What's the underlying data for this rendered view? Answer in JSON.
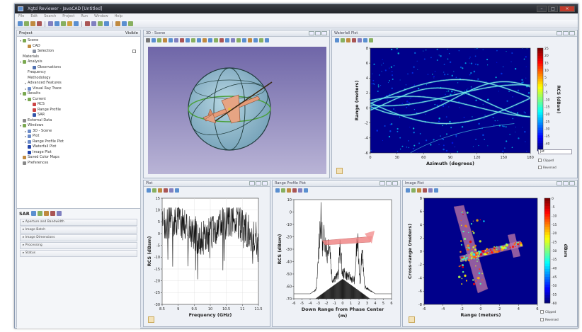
{
  "window": {
    "title": "Xgtd Reviewer - JavaCAD [Untitled]"
  },
  "menu": [
    "File",
    "Edit",
    "Search",
    "Project",
    "Run",
    "Window",
    "Help"
  ],
  "project": {
    "title": "Project",
    "visible_label": "Visible"
  },
  "tree": [
    {
      "label": "Scene",
      "indent": 0,
      "arrow": "▾",
      "color": "#7aa850"
    },
    {
      "label": "CAD",
      "indent": 1,
      "arrow": "",
      "color": "#c08a40"
    },
    {
      "label": "Selection",
      "indent": 2,
      "arrow": "",
      "color": "#8890a0"
    },
    {
      "label": "Materials",
      "indent": 0,
      "arrow": "",
      "color": ""
    },
    {
      "label": "Analysis",
      "indent": 0,
      "arrow": "▾",
      "color": "#7aa850"
    },
    {
      "label": "Observations",
      "indent": 2,
      "arrow": "",
      "color": "#5070b0"
    },
    {
      "label": "Frequency",
      "indent": 1,
      "arrow": "",
      "color": ""
    },
    {
      "label": "Methodology",
      "indent": 1,
      "arrow": "",
      "color": ""
    },
    {
      "label": "Advanced Features",
      "indent": 1,
      "arrow": "▸",
      "color": ""
    },
    {
      "label": "Visual Ray Trace",
      "indent": 1,
      "arrow": "▸",
      "color": "#6a8ac8"
    },
    {
      "label": "Results",
      "indent": 0,
      "arrow": "▾",
      "color": "#7aa850"
    },
    {
      "label": "Current",
      "indent": 1,
      "arrow": "▾",
      "color": "#7aa850"
    },
    {
      "label": "RCS",
      "indent": 2,
      "arrow": "",
      "color": "#cc4444"
    },
    {
      "label": "Range Profile",
      "indent": 2,
      "arrow": "",
      "color": "#cc4444"
    },
    {
      "label": "SAR",
      "indent": 2,
      "arrow": "",
      "color": "#3355aa"
    },
    {
      "label": "External Data",
      "indent": 0,
      "arrow": "",
      "color": "#888888"
    },
    {
      "label": "Windows",
      "indent": 0,
      "arrow": "▾",
      "color": "#7aa850"
    },
    {
      "label": "3D - Scene",
      "indent": 1,
      "arrow": "▸",
      "color": "#6a8ac8"
    },
    {
      "label": "Plot",
      "indent": 1,
      "arrow": "▸",
      "color": "#6a8ac8"
    },
    {
      "label": "Range Profile Plot",
      "indent": 1,
      "arrow": "▸",
      "color": "#6a8ac8"
    },
    {
      "label": "Waterfall Plot",
      "indent": 1,
      "arrow": "",
      "color": "#2244aa"
    },
    {
      "label": "Image Plot",
      "indent": 1,
      "arrow": "",
      "color": "#2244aa"
    },
    {
      "label": "Saved Color Maps",
      "indent": 0,
      "arrow": "",
      "color": "#c08a40"
    },
    {
      "label": "Preferences",
      "indent": 0,
      "arrow": "",
      "color": "#888888"
    }
  ],
  "sar": {
    "title": "SAR",
    "sections": [
      "Aperture and Bandwidth",
      "Image Batch",
      "Image Dimensions",
      "Processing",
      "Status"
    ]
  },
  "views": {
    "scene": "3D - Scene",
    "waterfall": "Waterfall Plot",
    "plot": "Plot",
    "range": "Range Profile Plot",
    "image": "Image Plot"
  },
  "colorbar_controls": {
    "clipped": "Clipped",
    "reversed": "Reversed",
    "select": "Jet"
  },
  "colors": {
    "panel": "#e4e9f1",
    "accent": "#3a6fc0",
    "plot_bg": "#00008b"
  },
  "chart_data": [
    {
      "type": "heatmap",
      "name": "waterfall",
      "xlabel": "Azimuth (degrees)",
      "ylabel": "Range (meters)",
      "xticks": [
        "0",
        "30",
        "60",
        "90",
        "120",
        "150",
        "180"
      ],
      "yticks": [
        "8",
        "6",
        "4",
        "2",
        "0",
        "-2",
        "-4",
        "-6"
      ],
      "xlim": [
        0,
        180
      ],
      "ylim": [
        -7,
        8
      ],
      "colorbar_label": "RCS (dBsm)",
      "colorbar_ticks": [
        "25",
        "20",
        "15",
        "10",
        "5",
        "0",
        "-5",
        "-10",
        "-15",
        "-20",
        "-25",
        "-30",
        "-35",
        "-40",
        "-45"
      ]
    },
    {
      "type": "line",
      "name": "rcs",
      "xlabel": "Frequency (GHz)",
      "ylabel": "RCS (dBsm)",
      "xticks": [
        "8.5",
        "9",
        "9.5",
        "10",
        "10.5",
        "11",
        "11.5"
      ],
      "yticks": [
        "15",
        "10",
        "5",
        "0",
        "-5",
        "-10",
        "-15",
        "-20",
        "-25",
        "-30"
      ],
      "xlim": [
        8.5,
        11.5
      ],
      "ylim": [
        -30,
        15
      ]
    },
    {
      "type": "line",
      "name": "range_profile",
      "xlabel": "Down Range from Phase Center",
      "xlabel2": "(m)",
      "ylabel": "RCS (dBsm)",
      "xticks": [
        "-6",
        "-5",
        "-4",
        "-3",
        "-2",
        "-1",
        "0",
        "1",
        "2",
        "3",
        "4",
        "5",
        "6"
      ],
      "yticks": [
        "10",
        "0",
        "-10",
        "-20",
        "-30",
        "-40",
        "-50",
        "-60",
        "-70"
      ],
      "xlim": [
        -6,
        6
      ],
      "ylim": [
        -70,
        10
      ]
    },
    {
      "type": "heatmap",
      "name": "sar_image",
      "xlabel": "Range (meters)",
      "ylabel": "Cross-range (meters)",
      "xticks": [
        "-6",
        "-4",
        "-2",
        "0",
        "2",
        "4",
        "6"
      ],
      "yticks": [
        "8",
        "6",
        "4",
        "2",
        "0",
        "-2",
        "-4",
        "-6",
        "-8"
      ],
      "xlim": [
        -7,
        7
      ],
      "ylim": [
        -8,
        8
      ],
      "colorbar_label": "dBsm",
      "colorbar_ticks": [
        "0",
        "-5",
        "-10",
        "-15",
        "-20",
        "-25",
        "-30",
        "-35",
        "-40",
        "-45",
        "-50",
        "-55",
        "-60"
      ]
    }
  ]
}
